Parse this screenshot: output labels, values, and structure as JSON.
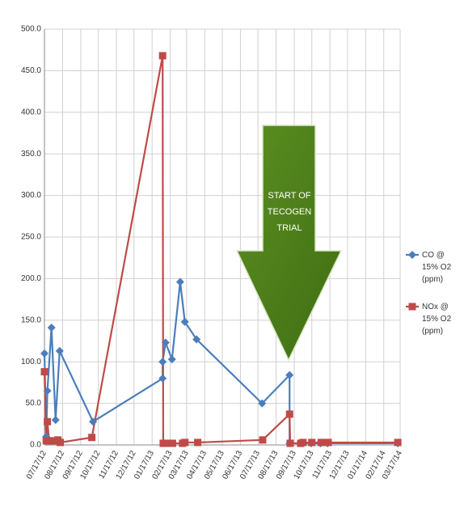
{
  "chart_data": {
    "type": "line",
    "annotation": "START OF TECOGEN TRIAL",
    "ylim": [
      0,
      500
    ],
    "yticks": [
      {
        "value": 0,
        "label": "0.0"
      },
      {
        "value": 50,
        "label": "50.0"
      },
      {
        "value": 100,
        "label": "100.0"
      },
      {
        "value": 150,
        "label": "150.0"
      },
      {
        "value": 200,
        "label": "200.0"
      },
      {
        "value": 250,
        "label": "250.0"
      },
      {
        "value": 300,
        "label": "300.0"
      },
      {
        "value": 350,
        "label": "350.0"
      },
      {
        "value": 400,
        "label": "400.0"
      },
      {
        "value": 450,
        "label": "450.0"
      },
      {
        "value": 500,
        "label": "500.0"
      }
    ],
    "xlim": [
      "2012-07-17",
      "2014-03-17"
    ],
    "xticks": [
      {
        "value": "2012-07-17",
        "label": "07/17/12"
      },
      {
        "value": "2012-08-17",
        "label": "08/17/12"
      },
      {
        "value": "2012-09-17",
        "label": "09/17/12"
      },
      {
        "value": "2012-10-17",
        "label": "10/17/12"
      },
      {
        "value": "2012-11-17",
        "label": "11/17/12"
      },
      {
        "value": "2012-12-17",
        "label": "12/17/12"
      },
      {
        "value": "2013-01-17",
        "label": "01/17/13"
      },
      {
        "value": "2013-02-17",
        "label": "02/17/13"
      },
      {
        "value": "2013-03-17",
        "label": "03/17/13"
      },
      {
        "value": "2013-04-17",
        "label": "04/17/13"
      },
      {
        "value": "2013-05-17",
        "label": "05/17/13"
      },
      {
        "value": "2013-06-17",
        "label": "06/17/13"
      },
      {
        "value": "2013-07-17",
        "label": "07/17/13"
      },
      {
        "value": "2013-08-17",
        "label": "08/17/13"
      },
      {
        "value": "2013-09-17",
        "label": "09/17/13"
      },
      {
        "value": "2013-10-17",
        "label": "10/17/13"
      },
      {
        "value": "2013-11-17",
        "label": "11/17/13"
      },
      {
        "value": "2013-12-17",
        "label": "12/17/13"
      },
      {
        "value": "2014-01-17",
        "label": "01/17/14"
      },
      {
        "value": "2014-02-17",
        "label": "02/17/14"
      },
      {
        "value": "2014-03-17",
        "label": "03/17/14"
      }
    ],
    "grid": true,
    "legend": "right",
    "series": [
      {
        "name": "CO @ 15% O2 (ppm)",
        "color": "#4a7ebb",
        "marker": "diamond",
        "x": [
          "2012-07-17",
          "2012-07-20",
          "2012-07-22",
          "2012-07-29",
          "2012-08-05",
          "2012-08-12",
          "2012-10-08",
          "2013-02-04",
          "2013-02-04",
          "2013-02-09",
          "2013-02-20",
          "2013-03-06",
          "2013-03-14",
          "2013-04-03",
          "2013-07-24",
          "2013-09-09",
          "2013-09-09",
          "2013-09-28",
          "2013-10-16",
          "2013-11-01",
          "2013-11-13",
          "2014-03-13"
        ],
        "values": [
          110,
          10,
          65,
          141,
          30,
          113,
          28,
          80,
          100,
          123,
          103,
          196,
          148,
          127,
          50,
          84,
          2,
          2,
          2,
          2,
          2,
          2
        ]
      },
      {
        "name": "NOx @ 15% O2 (ppm)",
        "color": "#be4b48",
        "marker": "square",
        "x": [
          "2012-07-17",
          "2012-07-20",
          "2012-07-22",
          "2012-07-25",
          "2012-08-01",
          "2012-08-09",
          "2012-08-13",
          "2012-10-06",
          "2013-02-04",
          "2013-02-05",
          "2013-02-10",
          "2013-02-21",
          "2013-03-10",
          "2013-03-14",
          "2013-04-05",
          "2013-07-25",
          "2013-09-09",
          "2013-09-10",
          "2013-09-28",
          "2013-10-02",
          "2013-10-17",
          "2013-11-02",
          "2013-11-14",
          "2014-03-13"
        ],
        "values": [
          88,
          5,
          28,
          5,
          5,
          6,
          3,
          9,
          468,
          2,
          2,
          2,
          2,
          3,
          3,
          6,
          37,
          2,
          2,
          3,
          3,
          3,
          3,
          3
        ]
      }
    ]
  }
}
